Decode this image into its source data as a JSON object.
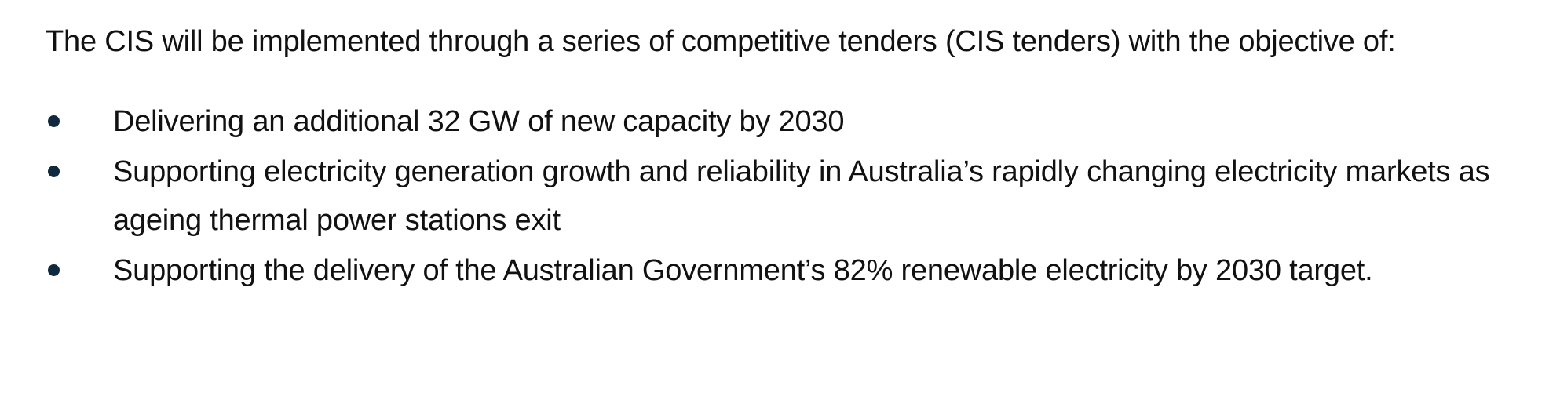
{
  "intro": "The CIS will be implemented through a series of competitive tenders (CIS tenders) with the objective of:",
  "bullets": [
    "Delivering an additional 32 GW of new capacity by 2030",
    "Supporting electricity generation growth and reliability in Australia’s rapidly changing electricity markets as ageing thermal power stations exit",
    "Supporting the delivery of the Australian Government’s 82% renewable electricity by 2030 target."
  ],
  "colors": {
    "text": "#111111",
    "bullet": "#0f2a3f"
  }
}
